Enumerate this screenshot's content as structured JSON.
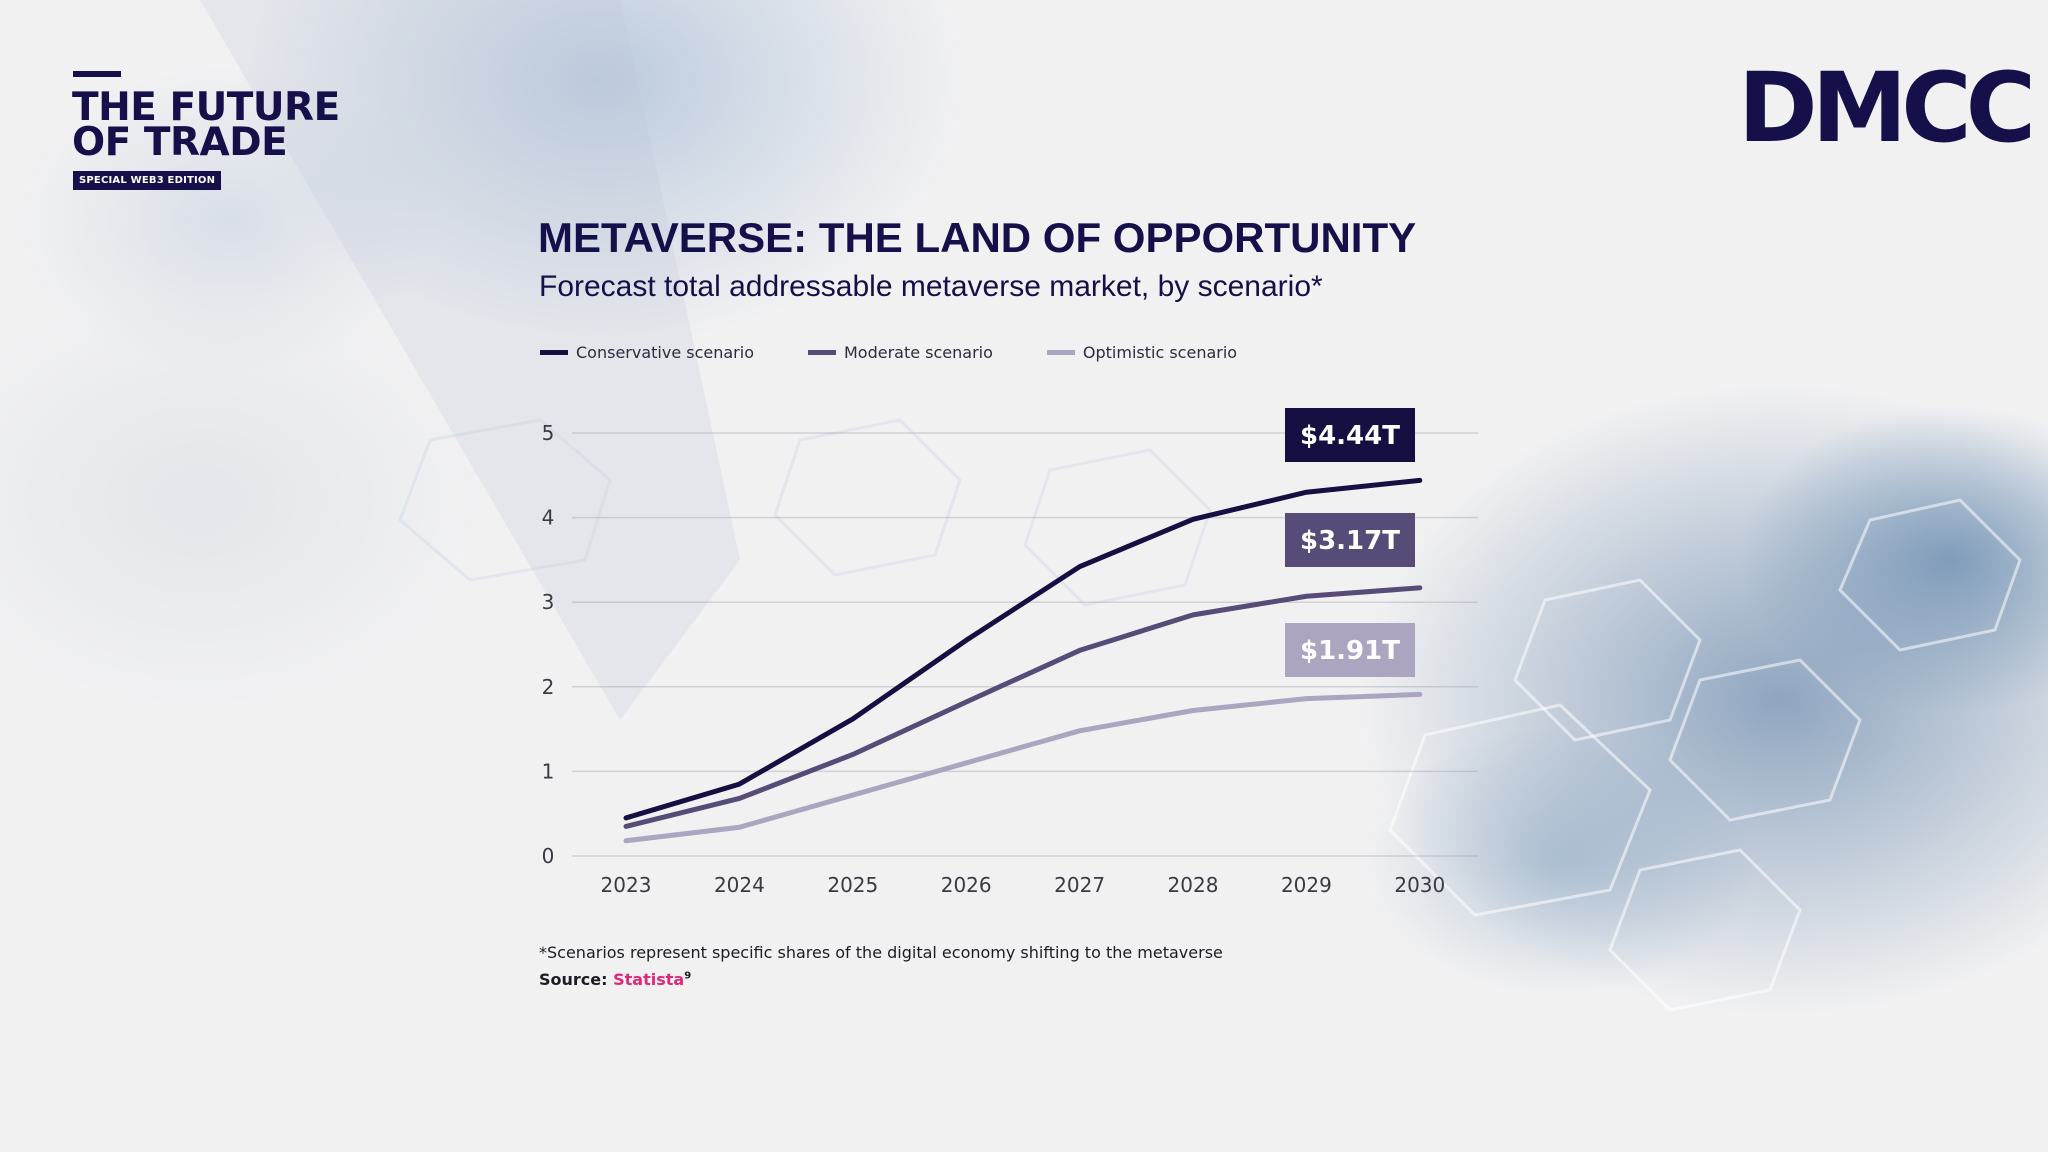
{
  "brand": {
    "title_line1": "THE FUTURE",
    "title_line2": "OF TRADE",
    "badge": "SPECIAL WEB3 EDITION"
  },
  "logo": {
    "text": "DMCC"
  },
  "colors": {
    "navy": "#16104a",
    "conservative": "#150f42",
    "moderate": "#564c77",
    "optimistic": "#aba5bf",
    "source_link": "#e0287a"
  },
  "chart_data": {
    "type": "line",
    "title": "METAVERSE: THE LAND OF OPPORTUNITY",
    "subtitle": "Forecast total addressable metaverse market, by scenario*",
    "x": [
      "2023",
      "2024",
      "2025",
      "2026",
      "2027",
      "2028",
      "2029",
      "2030"
    ],
    "y_ticks": [
      0,
      1,
      2,
      3,
      4,
      5
    ],
    "ylim": [
      0,
      5
    ],
    "grid": true,
    "legend_position": "top-left",
    "series": [
      {
        "name": "Conservative scenario",
        "color": "#150f42",
        "values": [
          0.45,
          0.85,
          1.62,
          2.55,
          3.42,
          3.98,
          4.3,
          4.44
        ],
        "callout": "$4.44T"
      },
      {
        "name": "Moderate scenario",
        "color": "#564c77",
        "values": [
          0.35,
          0.68,
          1.2,
          1.82,
          2.43,
          2.85,
          3.07,
          3.17
        ],
        "callout": "$3.17T"
      },
      {
        "name": "Optimistic scenario",
        "color": "#aba5bf",
        "values": [
          0.18,
          0.34,
          0.72,
          1.1,
          1.48,
          1.72,
          1.86,
          1.91
        ],
        "callout": "$1.91T"
      }
    ]
  },
  "footnote": "*Scenarios represent specific shares of the digital economy shifting to the metaverse",
  "source": {
    "label": "Source:",
    "link_text": "Statista",
    "sup": "9"
  }
}
